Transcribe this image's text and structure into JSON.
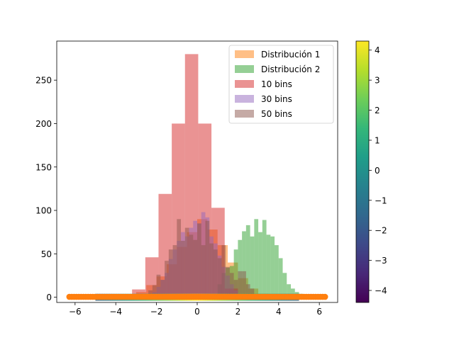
{
  "chart_data": {
    "type": "bar",
    "title": "",
    "xlabel": "",
    "ylabel": "",
    "xlim": [
      -6.9,
      6.9
    ],
    "ylim": [
      -6,
      295
    ],
    "xticks": [
      -6,
      -4,
      -2,
      0,
      2,
      4,
      6
    ],
    "yticks": [
      0,
      50,
      100,
      150,
      200,
      250
    ],
    "grid": false,
    "legend": {
      "placement": "top-right",
      "entries": [
        "Distribución 1",
        "Distribución 2",
        "10 bins",
        "30 bins",
        "50 bins"
      ]
    },
    "series": [
      {
        "name": "Distribución 1",
        "kind": "histogram",
        "color": "#ff7f0e",
        "alpha": 0.5,
        "bin_edges": [
          -4,
          -3.5,
          -3,
          -2.5,
          -2,
          -1.5,
          -1,
          -0.5,
          0,
          0.5,
          1,
          1.5,
          2,
          2.5,
          3,
          3.5,
          4
        ],
        "counts": [
          0,
          2,
          6,
          14,
          24,
          38,
          58,
          75,
          90,
          78,
          60,
          40,
          22,
          10,
          4,
          1
        ]
      },
      {
        "name": "Distribución 2",
        "kind": "histogram",
        "color": "#2ca02c",
        "alpha": 0.5,
        "bin_edges": [
          1,
          1.2,
          1.4,
          1.6,
          1.8,
          2,
          2.2,
          2.4,
          2.6,
          2.8,
          3,
          3.2,
          3.4,
          3.6,
          3.8,
          4,
          4.2,
          4.4,
          4.6,
          4.8,
          5,
          5.2
        ],
        "counts": [
          15,
          28,
          34,
          36,
          55,
          66,
          76,
          83,
          70,
          90,
          75,
          89,
          72,
          70,
          60,
          45,
          28,
          15,
          10,
          6,
          4
        ]
      },
      {
        "name": "10 bins",
        "kind": "histogram",
        "color": "#d62728",
        "alpha": 0.5,
        "bin_edges": [
          -3.2,
          -2.55,
          -1.9,
          -1.25,
          -0.6,
          0.05,
          0.7,
          1.35,
          2.0
        ],
        "counts": [
          9,
          46,
          119,
          200,
          280,
          200,
          103,
          10
        ]
      },
      {
        "name": "30 bins",
        "kind": "histogram",
        "color": "#9467bd",
        "alpha": 0.5,
        "bin_edges": [
          -2.4,
          -2.2,
          -2.0,
          -1.8,
          -1.6,
          -1.4,
          -1.2,
          -1.0,
          -0.8,
          -0.6,
          -0.4,
          -0.2,
          0.0,
          0.2,
          0.4,
          0.6,
          0.8,
          1.0,
          1.2,
          1.4,
          1.6,
          1.8,
          2.0
        ],
        "counts": [
          3,
          6,
          12,
          20,
          28,
          44,
          55,
          65,
          75,
          70,
          80,
          88,
          85,
          98,
          92,
          70,
          62,
          48,
          35,
          25,
          15,
          8
        ]
      },
      {
        "name": "50 bins",
        "kind": "histogram",
        "color": "#8c564b",
        "alpha": 0.5,
        "bin_edges": [
          -2.4,
          -2.2,
          -2.0,
          -1.8,
          -1.6,
          -1.4,
          -1.2,
          -1.0,
          -0.8,
          -0.6,
          -0.4,
          -0.2,
          0.0,
          0.2,
          0.4,
          0.6,
          0.8,
          1.0,
          1.2,
          1.4,
          1.6,
          1.8,
          2.0,
          2.2,
          2.4,
          2.6,
          2.8
        ],
        "counts": [
          8,
          14,
          26,
          20,
          42,
          55,
          60,
          90,
          65,
          80,
          72,
          66,
          85,
          60,
          88,
          62,
          55,
          45,
          60,
          35,
          28,
          20,
          30,
          30,
          15,
          10
        ]
      }
    ],
    "scatter": {
      "color": "#ff7f0e",
      "x_range": [
        -6.28,
        6.28
      ],
      "count": 110,
      "y_level": 0.5
    },
    "band": {
      "kind": "colored band",
      "x_range": [
        -5,
        5
      ],
      "y_range": [
        -4,
        4
      ]
    },
    "colorbar": {
      "range": [
        -4.4,
        4.3
      ],
      "ticks": [
        -4,
        -3,
        -2,
        -1,
        0,
        1,
        2,
        3,
        4
      ],
      "colormap": "viridis"
    }
  }
}
